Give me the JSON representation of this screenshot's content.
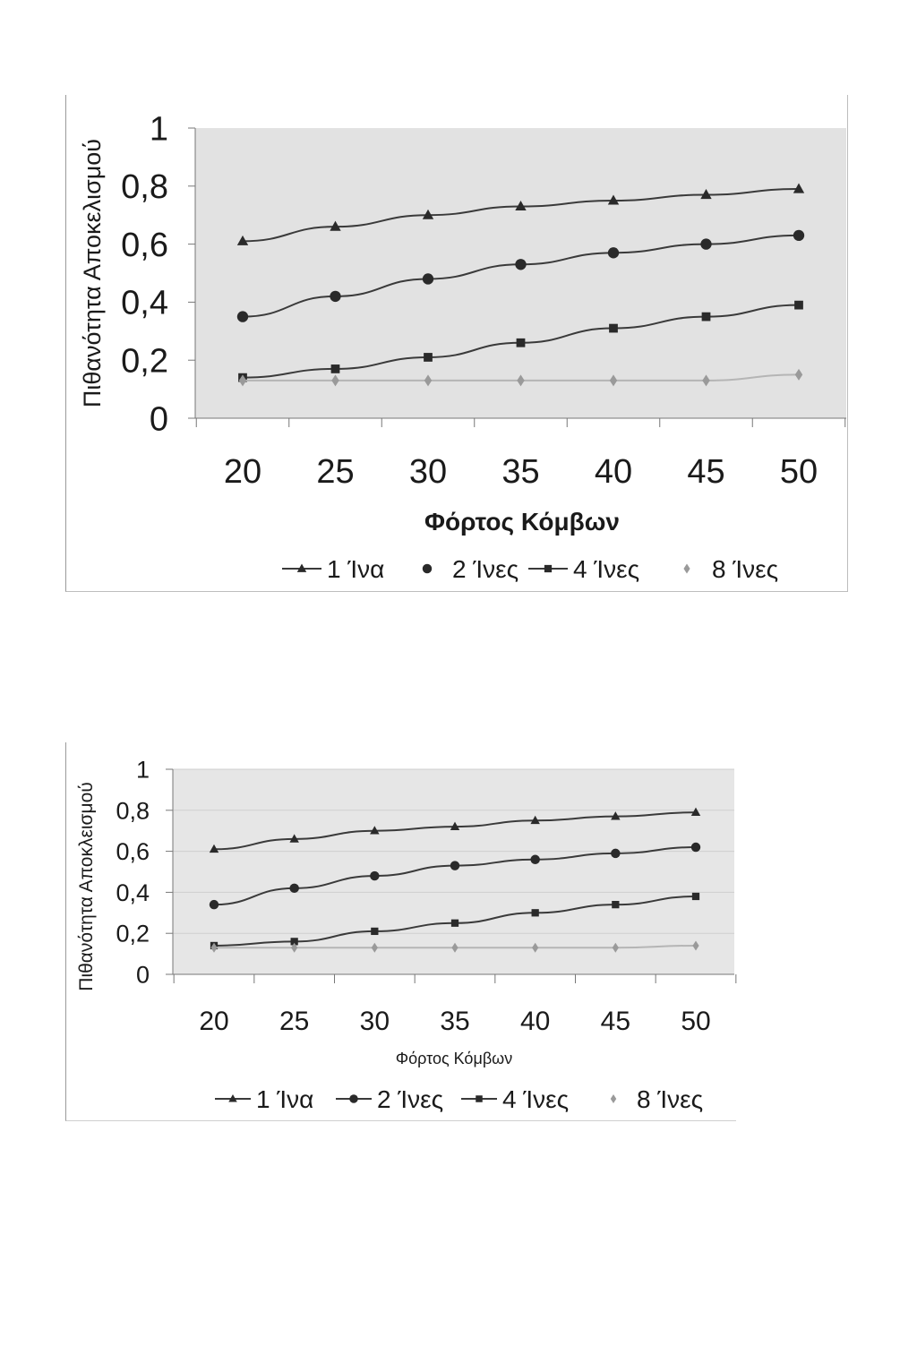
{
  "chart_data": [
    {
      "type": "line",
      "title": "",
      "xlabel": "Φόρτος Κόμβων",
      "ylabel": "Πιθανότητα Αποκελισμού",
      "x": [
        20,
        25,
        30,
        35,
        40,
        45,
        50
      ],
      "x_tick_labels": [
        "20",
        "25",
        "30",
        "35",
        "40",
        "45",
        "50"
      ],
      "y_tick_labels": [
        "0",
        "0,2",
        "0,4",
        "0,6",
        "0,8",
        "1"
      ],
      "ylim": [
        0,
        1
      ],
      "grid": false,
      "legend_position": "bottom",
      "series": [
        {
          "name": "1 Ίνα",
          "marker": "triangle",
          "values": [
            0.61,
            0.66,
            0.7,
            0.73,
            0.75,
            0.77,
            0.79
          ]
        },
        {
          "name": "2 Ίνες",
          "marker": "circle",
          "values": [
            0.35,
            0.42,
            0.48,
            0.53,
            0.57,
            0.6,
            0.63
          ]
        },
        {
          "name": "4 Ίνες",
          "marker": "square",
          "values": [
            0.14,
            0.17,
            0.21,
            0.26,
            0.31,
            0.35,
            0.39
          ]
        },
        {
          "name": "8 Ίνες",
          "marker": "diamond",
          "values": [
            0.13,
            0.13,
            0.13,
            0.13,
            0.13,
            0.13,
            0.15
          ]
        }
      ]
    },
    {
      "type": "line",
      "title": "",
      "xlabel": "Φόρτος Κόμβων",
      "ylabel": "Πιθανότητα Αποκλεισμού",
      "x": [
        20,
        25,
        30,
        35,
        40,
        45,
        50
      ],
      "x_tick_labels": [
        "20",
        "25",
        "30",
        "35",
        "40",
        "45",
        "50"
      ],
      "y_tick_labels": [
        "0",
        "0,2",
        "0,4",
        "0,6",
        "0,8",
        "1"
      ],
      "ylim": [
        0,
        1
      ],
      "grid": true,
      "legend_position": "bottom",
      "series": [
        {
          "name": "1 Ίνα",
          "marker": "triangle",
          "values": [
            0.61,
            0.66,
            0.7,
            0.72,
            0.75,
            0.77,
            0.79
          ]
        },
        {
          "name": "2 Ίνες",
          "marker": "circle",
          "values": [
            0.34,
            0.42,
            0.48,
            0.53,
            0.56,
            0.59,
            0.62
          ]
        },
        {
          "name": "4 Ίνες",
          "marker": "square",
          "values": [
            0.14,
            0.16,
            0.21,
            0.25,
            0.3,
            0.34,
            0.38
          ]
        },
        {
          "name": "8 Ίνες",
          "marker": "diamond",
          "values": [
            0.13,
            0.13,
            0.13,
            0.13,
            0.13,
            0.13,
            0.14
          ]
        }
      ]
    }
  ]
}
